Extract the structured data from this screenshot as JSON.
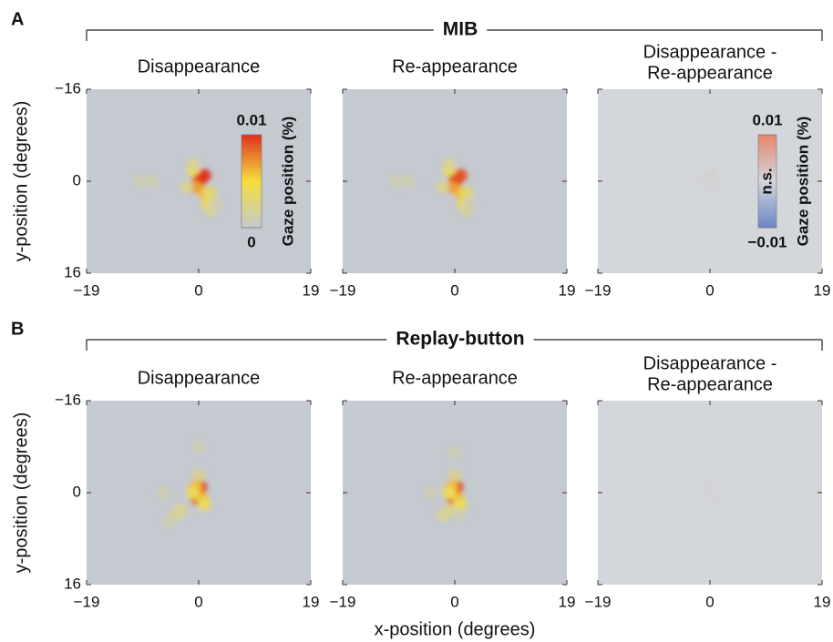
{
  "figure": {
    "groups": [
      {
        "label": "A",
        "title": "MIB"
      },
      {
        "label": "B",
        "title": "Replay-button"
      }
    ]
  },
  "chart_data": [
    {
      "type": "heatmap",
      "title": "Disappearance",
      "y_label": "y-position (degrees)",
      "xlim": [
        -19,
        19
      ],
      "ylim": [
        16,
        -16
      ],
      "xticks": [
        {
          "value": -19,
          "label": "−19"
        },
        0,
        19
      ],
      "yticks": [
        {
          "value": -16,
          "label": "−16"
        },
        0,
        16
      ],
      "ytick_labels": true,
      "clim": [
        0,
        0.01
      ],
      "colormap": [
        "#c5c9d0",
        "#f4de3c",
        "#e0301e"
      ],
      "x": [
        0,
        0.5,
        1,
        -0.5,
        1,
        1.5,
        -1,
        2,
        -1,
        2,
        -2,
        -10,
        -8,
        3
      ],
      "y": [
        0,
        -0.5,
        -1,
        1,
        2,
        4,
        -2,
        2,
        -3,
        5,
        1,
        0,
        0,
        4
      ],
      "values": [
        0.01,
        0.01,
        0.01,
        0.007,
        0.006,
        0.004,
        0.004,
        0.003,
        0.002,
        0.002,
        0.002,
        0.001,
        0.001,
        0.001
      ],
      "colorbar": {
        "ticks": [
          0,
          0.01
        ],
        "label": "Gaze position (%)"
      }
    },
    {
      "type": "heatmap",
      "title": "Re-appearance",
      "xlim": [
        -19,
        19
      ],
      "ylim": [
        16,
        -16
      ],
      "xticks": [
        {
          "value": -19,
          "label": "−19"
        },
        0,
        19
      ],
      "yticks": [
        -16,
        0,
        16
      ],
      "ytick_labels": false,
      "clim": [
        0,
        0.01
      ],
      "colormap": [
        "#c5c9d0",
        "#f4de3c",
        "#e0301e"
      ],
      "x": [
        0,
        0.5,
        1,
        -0.5,
        1,
        1.5,
        -1,
        2,
        -1,
        2,
        -2,
        -10,
        -8,
        2.5
      ],
      "y": [
        0,
        -0.5,
        -1,
        1,
        2,
        4,
        -2,
        2,
        -3,
        5,
        1,
        0,
        0,
        4
      ],
      "values": [
        0.01,
        0.01,
        0.009,
        0.007,
        0.006,
        0.004,
        0.004,
        0.003,
        0.002,
        0.002,
        0.002,
        0.001,
        0.001,
        0.001
      ]
    },
    {
      "type": "heatmap",
      "title": [
        "Disappearance -",
        "Re-appearance"
      ],
      "xlim": [
        -19,
        19
      ],
      "ylim": [
        16,
        -16
      ],
      "xticks": [
        {
          "value": -19,
          "label": "−19"
        },
        0,
        19
      ],
      "yticks": [
        -16,
        0,
        16
      ],
      "ytick_labels": false,
      "clim": [
        -0.01,
        0.01
      ],
      "colormap": [
        "#6a86c8",
        "#d3d6da",
        "#e5866f"
      ],
      "x": [
        -1,
        0,
        1,
        0.5,
        -0.5
      ],
      "y": [
        0,
        -1,
        0,
        1,
        1
      ],
      "values": [
        0.0006,
        0.0008,
        0.0006,
        0.0005,
        0.0004
      ],
      "colorbar": {
        "ticks": [
          {
            "value": -0.01,
            "label": "−0.01"
          },
          0.01
        ],
        "label": "Gaze position (%)",
        "annotation": "n.s."
      }
    },
    {
      "type": "heatmap",
      "title": "Disappearance",
      "y_label": "y-position (degrees)",
      "xlim": [
        -19,
        19
      ],
      "ylim": [
        16,
        -16
      ],
      "xticks": [
        {
          "value": -19,
          "label": "−19"
        },
        0,
        19
      ],
      "yticks": [
        {
          "value": -16,
          "label": "−16"
        },
        0,
        16
      ],
      "ytick_labels": true,
      "clim": [
        0,
        0.01
      ],
      "colormap": [
        "#c5c9d0",
        "#f4de3c",
        "#e0301e"
      ],
      "x": [
        0,
        0.3,
        -0.3,
        0.5,
        -0.5,
        1,
        -1,
        0,
        -3,
        -4,
        -5,
        0,
        -6
      ],
      "y": [
        0,
        -1,
        1,
        1,
        -1,
        2,
        0,
        -3,
        3,
        4,
        5,
        -8,
        0
      ],
      "values": [
        0.01,
        0.01,
        0.009,
        0.006,
        0.006,
        0.004,
        0.004,
        0.002,
        0.002,
        0.002,
        0.001,
        0.001,
        0.001
      ]
    },
    {
      "type": "heatmap",
      "title": "Re-appearance",
      "x_label": "x-position (degrees)",
      "xlim": [
        -19,
        19
      ],
      "ylim": [
        16,
        -16
      ],
      "xticks": [
        {
          "value": -19,
          "label": "−19"
        },
        0,
        19
      ],
      "yticks": [
        -16,
        0,
        16
      ],
      "ytick_labels": false,
      "clim": [
        0,
        0.01
      ],
      "colormap": [
        "#c5c9d0",
        "#f4de3c",
        "#e0301e"
      ],
      "x": [
        0,
        0.3,
        -0.3,
        0.5,
        -0.5,
        1,
        -1,
        0,
        -1,
        -2,
        -4,
        0,
        1
      ],
      "y": [
        0,
        -1,
        1,
        1,
        -1,
        2,
        0,
        -3,
        3,
        4,
        0,
        -7,
        4
      ],
      "values": [
        0.01,
        0.01,
        0.009,
        0.006,
        0.006,
        0.004,
        0.004,
        0.002,
        0.002,
        0.002,
        0.001,
        0.001,
        0.001
      ]
    },
    {
      "type": "heatmap",
      "title": [
        "Disappearance -",
        "Re-appearance"
      ],
      "xlim": [
        -19,
        19
      ],
      "ylim": [
        16,
        -16
      ],
      "xticks": [
        {
          "value": -19,
          "label": "−19"
        },
        0,
        19
      ],
      "yticks": [
        -16,
        0,
        16
      ],
      "ytick_labels": false,
      "clim": [
        -0.01,
        0.01
      ],
      "colormap": [
        "#6a86c8",
        "#d3d6da",
        "#e5866f"
      ],
      "x": [
        0,
        -0.5,
        0.5
      ],
      "y": [
        0,
        -1,
        1
      ],
      "values": [
        0.0006,
        0.0004,
        0.0004
      ]
    }
  ]
}
